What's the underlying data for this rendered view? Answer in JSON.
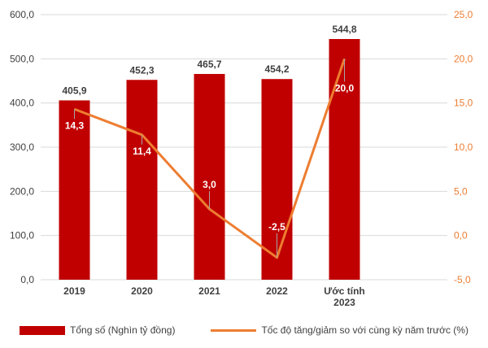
{
  "chart_data": {
    "type": "bar+line",
    "categories": [
      "2019",
      "2020",
      "2021",
      "2022",
      "Ước tính 2023"
    ],
    "series": [
      {
        "name": "Tổng số (Nghìn tỷ đồng)",
        "type": "bar",
        "axis": "left",
        "values": [
          405.9,
          452.3,
          465.7,
          454.2,
          544.8
        ],
        "labels": [
          "405,9",
          "452,3",
          "465,7",
          "454,2",
          "544,8"
        ],
        "color": "#c00000"
      },
      {
        "name": "Tốc độ tăng/giảm so với cùng kỳ năm trước (%)",
        "type": "line",
        "axis": "right",
        "values": [
          14.3,
          11.4,
          3.0,
          -2.5,
          20.0
        ],
        "labels": [
          "14,3",
          "11,4",
          "3,0",
          "-2,5",
          "20,0"
        ],
        "color": "#ed7d31"
      }
    ],
    "y_left": {
      "min": 0,
      "max": 600,
      "ticks": [
        0,
        100,
        200,
        300,
        400,
        500,
        600
      ],
      "tick_labels": [
        "0,0",
        "100,0",
        "200,0",
        "300,0",
        "400,0",
        "500,0",
        "600,0"
      ],
      "color": "#404040"
    },
    "y_right": {
      "min": -5,
      "max": 25,
      "ticks": [
        -5,
        0,
        5,
        10,
        15,
        20,
        25
      ],
      "tick_labels": [
        "-5,0",
        "0,0",
        "5,0",
        "10,0",
        "15,0",
        "20,0",
        "25,0"
      ],
      "color": "#ed7d31"
    },
    "grid": true,
    "legend_position": "bottom"
  },
  "category_lines": [
    [
      "2019"
    ],
    [
      "2020"
    ],
    [
      "2021"
    ],
    [
      "2022"
    ],
    [
      "Ước tính",
      "2023"
    ]
  ]
}
